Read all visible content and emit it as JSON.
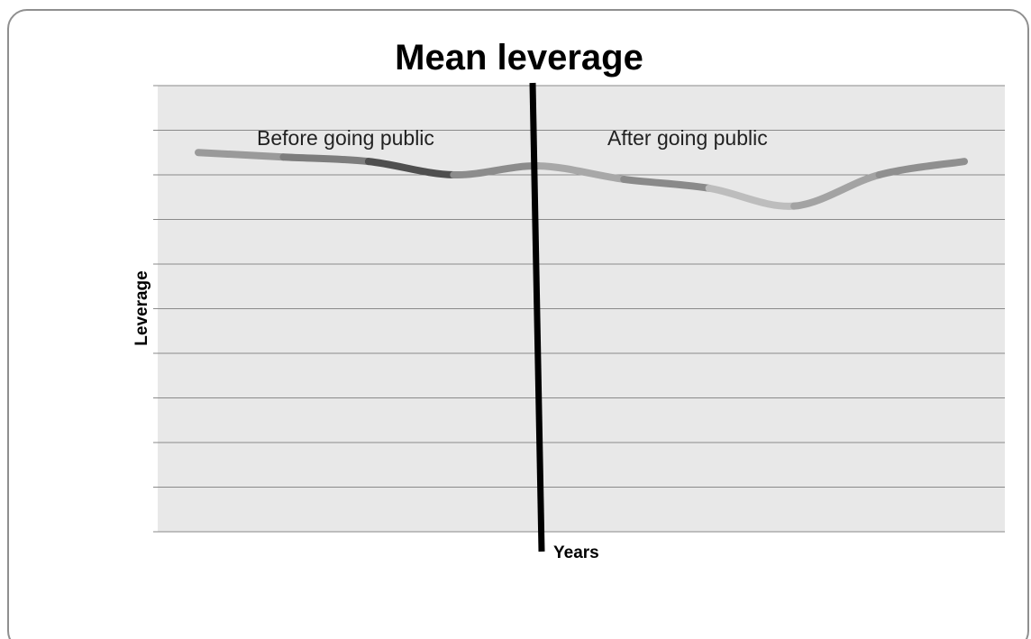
{
  "chart_data": {
    "type": "line",
    "title": "Mean leverage",
    "xlabel": "Years",
    "ylabel": "Leverage",
    "ylim": [
      0,
      10
    ],
    "grid": true,
    "tick_labels_shown": false,
    "plot_background": "#e8e8e8",
    "gridline_color": "#8a8a8a",
    "x": [
      0,
      1,
      2,
      3,
      4,
      5,
      6,
      7,
      8,
      9
    ],
    "series": [
      {
        "values": [
          8.5,
          8.4,
          8.3,
          8.0,
          8.2,
          7.9,
          7.7,
          7.3,
          8.0,
          8.3
        ],
        "segment_colors": [
          "#9a9a9a",
          "#7d7d7d",
          "#4f4f4f",
          "#8c8c8c",
          "#a8a8a8",
          "#8a8a8a",
          "#bdbdbd",
          "#a3a3a3",
          "#8f8f8f"
        ]
      }
    ],
    "divider": {
      "color": "#000000"
    },
    "annotations": [
      {
        "text": "Before going public",
        "region": "before"
      },
      {
        "text": "After going public",
        "region": "after"
      }
    ]
  }
}
